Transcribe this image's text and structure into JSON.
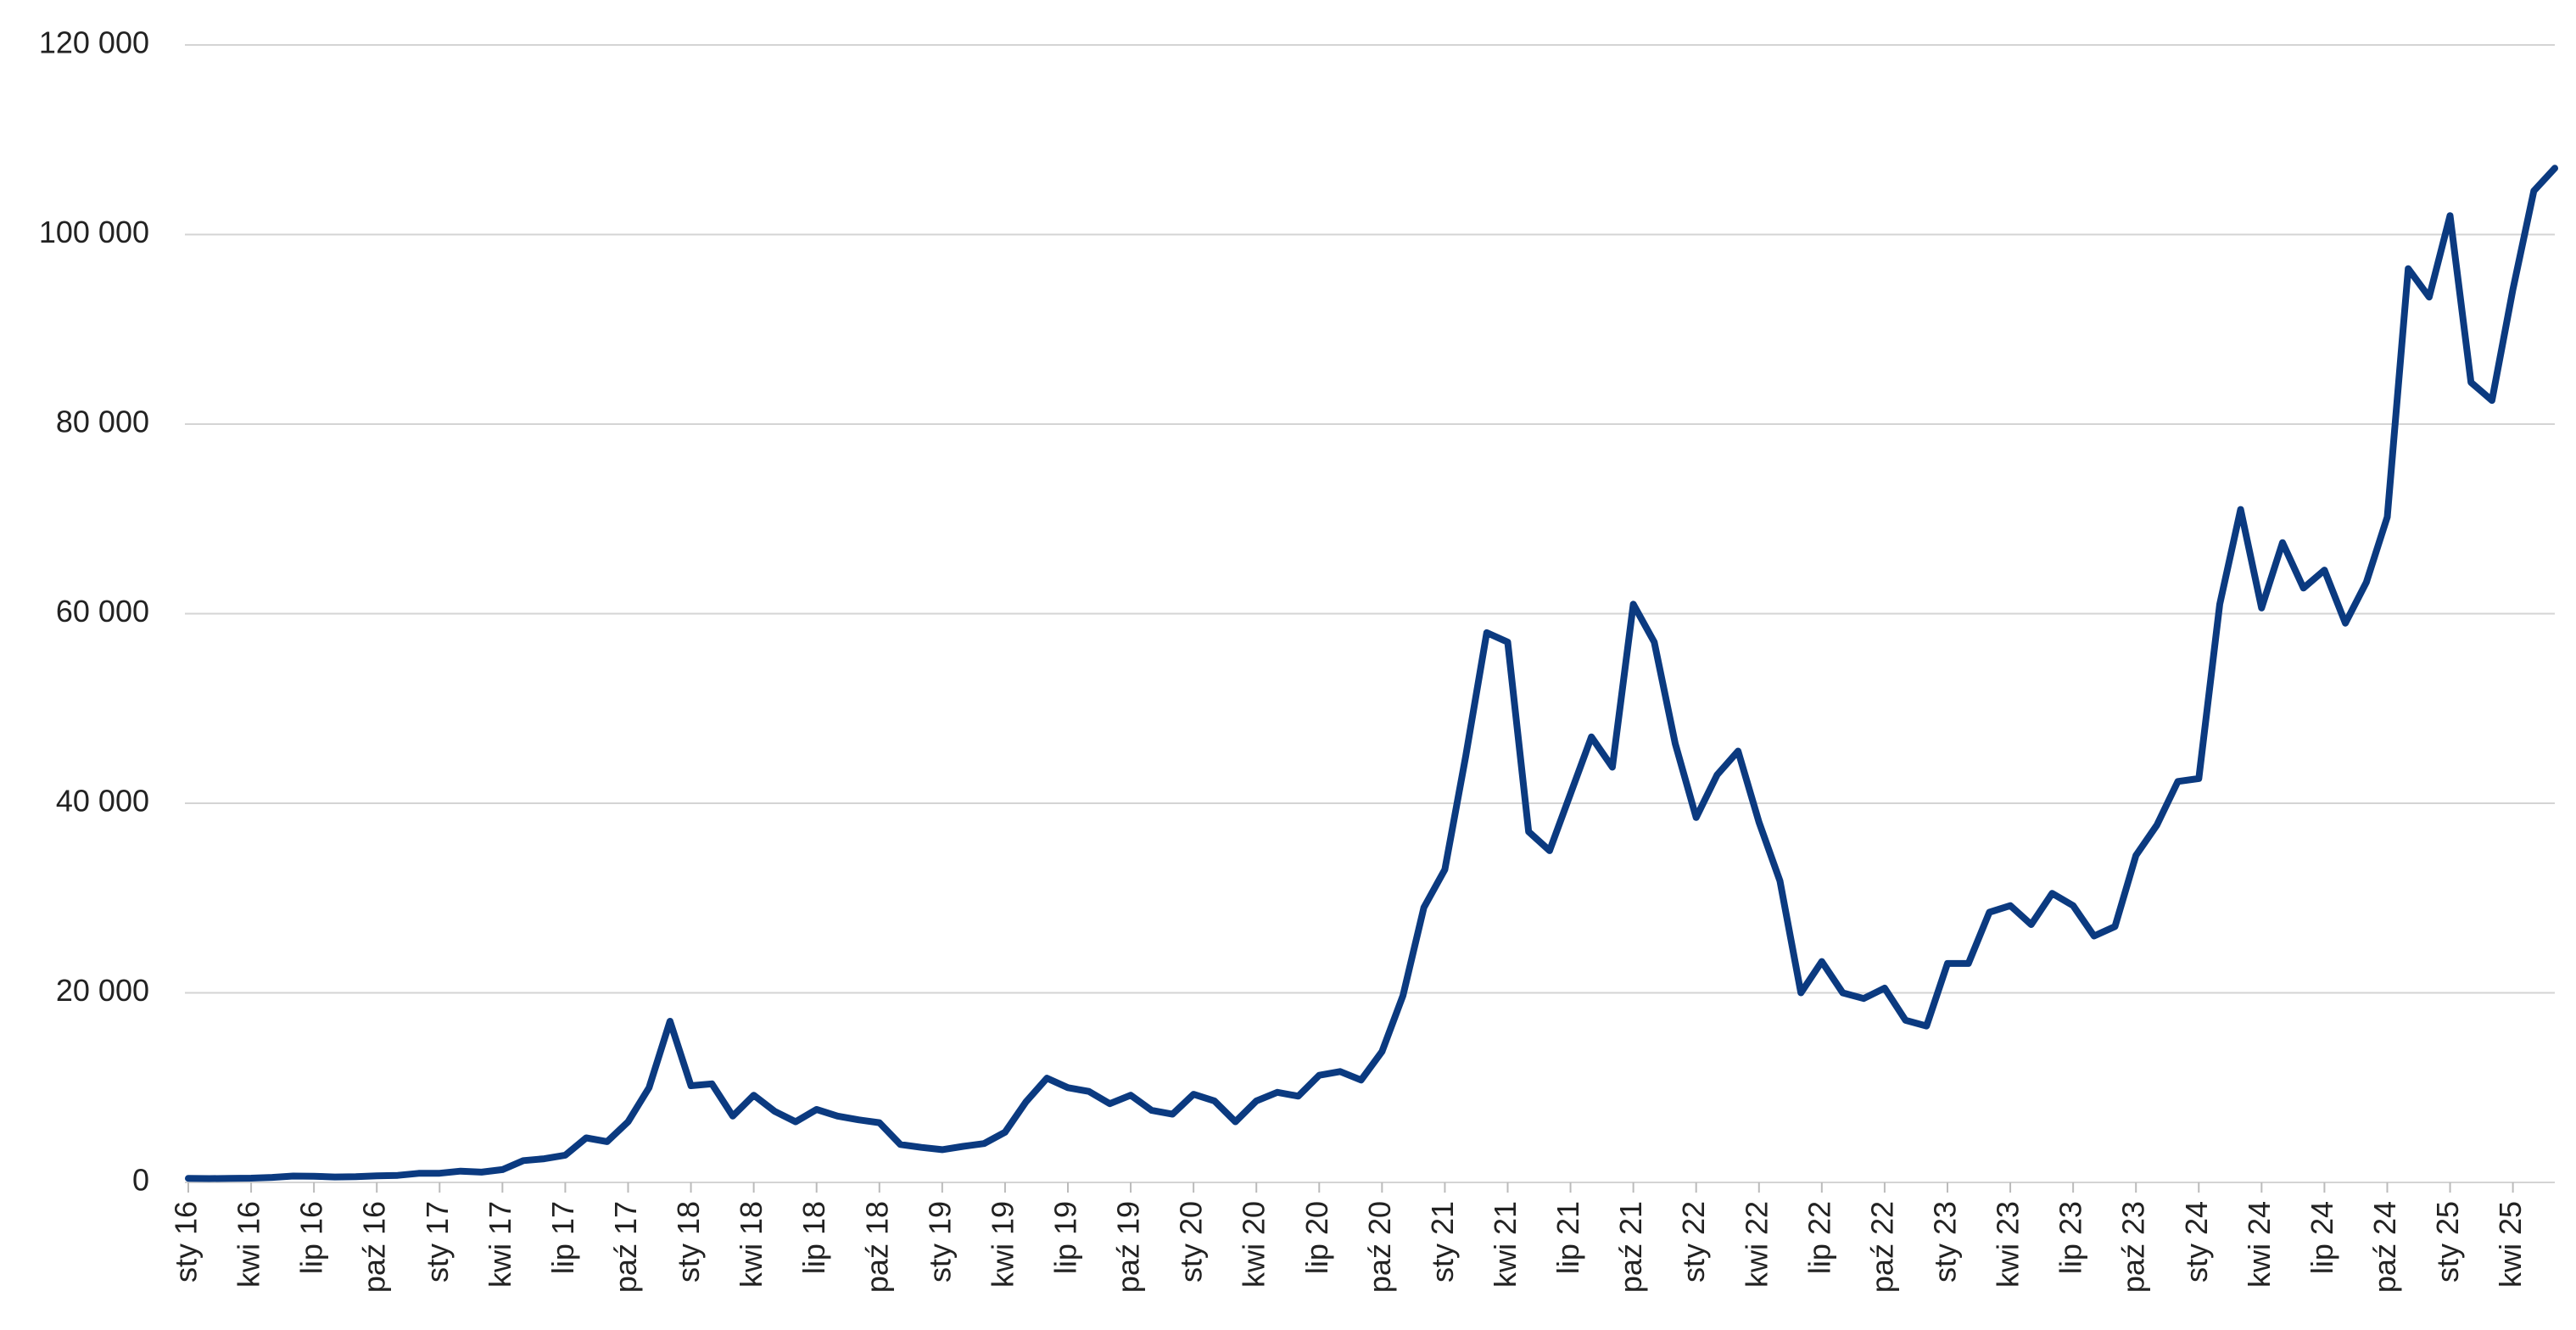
{
  "chart_data": {
    "type": "line",
    "categories": [
      "sty 16",
      null,
      null,
      "kwi 16",
      null,
      null,
      "lip 16",
      null,
      null,
      "paź 16",
      null,
      null,
      "sty 17",
      null,
      null,
      "kwi 17",
      null,
      null,
      "lip 17",
      null,
      null,
      "paź 17",
      null,
      null,
      "sty 18",
      null,
      null,
      "kwi 18",
      null,
      null,
      "lip 18",
      null,
      null,
      "paź 18",
      null,
      null,
      "sty 19",
      null,
      null,
      "kwi 19",
      null,
      null,
      "lip 19",
      null,
      null,
      "paź 19",
      null,
      null,
      "sty 20",
      null,
      null,
      "kwi 20",
      null,
      null,
      "lip 20",
      null,
      null,
      "paź 20",
      null,
      null,
      "sty 21",
      null,
      null,
      "kwi 21",
      null,
      null,
      "lip 21",
      null,
      null,
      "paź 21",
      null,
      null,
      "sty 22",
      null,
      null,
      "kwi 22",
      null,
      null,
      "lip 22",
      null,
      null,
      "paź 22",
      null,
      null,
      "sty 23",
      null,
      null,
      "kwi 23",
      null,
      null,
      "lip 23",
      null,
      null,
      "paź 23",
      null,
      null,
      "sty 24",
      null,
      null,
      "kwi 24",
      null,
      null,
      "lip 24",
      null,
      null,
      "paź 24",
      null,
      null,
      "sty 25",
      null,
      null,
      "kwi 25",
      null,
      null
    ],
    "values": [
      430,
      400,
      420,
      450,
      530,
      670,
      650,
      575,
      610,
      700,
      740,
      960,
      970,
      1190,
      1080,
      1350,
      2300,
      2500,
      2870,
      4700,
      4300,
      6400,
      10000,
      17000,
      10200,
      10400,
      7000,
      9200,
      7500,
      6400,
      7700,
      7000,
      6600,
      6300,
      4000,
      3700,
      3450,
      3800,
      4100,
      5300,
      8500,
      11000,
      10000,
      9600,
      8300,
      9200,
      7600,
      7200,
      9300,
      8600,
      6400,
      8600,
      9500,
      9100,
      11300,
      11700,
      10800,
      13800,
      19700,
      29000,
      33000,
      45000,
      58000,
      57000,
      37000,
      35000,
      41000,
      47000,
      43800,
      61000,
      57000,
      46300,
      38500,
      43000,
      45500,
      38000,
      31800,
      20000,
      23300,
      20000,
      19400,
      20500,
      17100,
      16500,
      23100,
      23100,
      28500,
      29200,
      27200,
      30500,
      29200,
      26000,
      27000,
      34500,
      37700,
      42300,
      42600,
      61000,
      71000,
      60600,
      67500,
      62700,
      64600,
      59000,
      63300,
      70200,
      96400,
      93400,
      102000,
      84400,
      82500,
      94200,
      104600,
      107000
    ],
    "color": "#0b3a80",
    "ylim": [
      0,
      120000
    ],
    "yticks": [
      0,
      {
        "value": 20000,
        "label": "20 000"
      },
      {
        "value": 40000,
        "label": "40 000"
      },
      {
        "value": 60000,
        "label": "60 000"
      },
      {
        "value": 80000,
        "label": "80 000"
      },
      {
        "value": 100000,
        "label": "100 000"
      },
      {
        "value": 120000,
        "label": "120 000"
      }
    ],
    "grid": true
  }
}
